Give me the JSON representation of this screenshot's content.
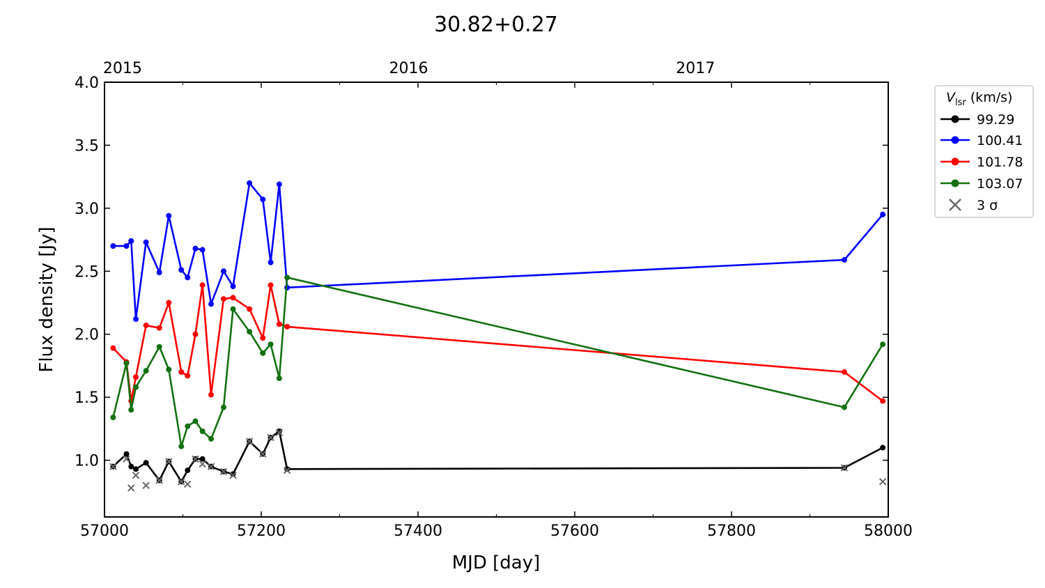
{
  "chart_data": {
    "type": "line",
    "title": "30.82+0.27",
    "xlabel": "MJD [day]",
    "ylabel": "Flux density [Jy]",
    "xlim": [
      57000,
      58000
    ],
    "ylim": [
      0.55,
      4.0
    ],
    "xticks": [
      57000,
      57200,
      57400,
      57600,
      57800,
      58000
    ],
    "yticks": [
      1.0,
      1.5,
      2.0,
      2.5,
      3.0,
      3.5,
      4.0
    ],
    "yticklabels": [
      "1.0",
      "1.5",
      "2.0",
      "2.5",
      "3.0",
      "3.5",
      "4.0"
    ],
    "top_axis": {
      "ticks": [
        {
          "label": "2015",
          "mjd": 57023
        },
        {
          "label": "2016",
          "mjd": 57388
        },
        {
          "label": "2017",
          "mjd": 57754
        }
      ]
    },
    "legend": {
      "title_main": "V",
      "title_sub": "lsr",
      "title_rest": " (km/s)",
      "placement": "outside-right-top",
      "sigma_label": "3 σ"
    },
    "series": [
      {
        "name": "99.29",
        "color": "#000000",
        "x": [
          57011,
          57028,
          57034,
          57040,
          57053,
          57070,
          57082,
          57098,
          57106,
          57116,
          57125,
          57136,
          57152,
          57164,
          57185,
          57202,
          57212,
          57223,
          57233,
          57944,
          57993
        ],
        "y": [
          0.95,
          1.05,
          0.95,
          0.93,
          0.98,
          0.84,
          0.99,
          0.83,
          0.92,
          1.01,
          1.01,
          0.95,
          0.91,
          0.89,
          1.15,
          1.05,
          1.18,
          1.23,
          0.93,
          0.94,
          1.1
        ]
      },
      {
        "name": "100.41",
        "color": "#0000ff",
        "x": [
          57011,
          57028,
          57034,
          57040,
          57053,
          57070,
          57082,
          57098,
          57106,
          57116,
          57125,
          57136,
          57152,
          57164,
          57185,
          57202,
          57212,
          57223,
          57233,
          57944,
          57993
        ],
        "y": [
          2.7,
          2.7,
          2.74,
          2.12,
          2.73,
          2.49,
          2.94,
          2.51,
          2.45,
          2.68,
          2.67,
          2.24,
          2.5,
          2.38,
          3.2,
          3.07,
          2.57,
          3.19,
          2.37,
          2.59,
          2.95
        ]
      },
      {
        "name": "101.78",
        "color": "#ff0000",
        "x": [
          57011,
          57028,
          57034,
          57040,
          57053,
          57070,
          57082,
          57098,
          57106,
          57116,
          57125,
          57136,
          57152,
          57164,
          57185,
          57202,
          57212,
          57223,
          57233,
          57944,
          57993
        ],
        "y": [
          1.89,
          1.78,
          1.47,
          1.66,
          2.07,
          2.05,
          2.25,
          1.7,
          1.67,
          2.0,
          2.39,
          1.52,
          2.28,
          2.29,
          2.2,
          1.97,
          2.39,
          2.08,
          2.06,
          1.7,
          1.47
        ]
      },
      {
        "name": "103.07",
        "color": "#137010",
        "x": [
          57011,
          57028,
          57034,
          57040,
          57053,
          57070,
          57082,
          57098,
          57106,
          57116,
          57125,
          57136,
          57152,
          57164,
          57185,
          57202,
          57212,
          57223,
          57233,
          57944,
          57993
        ],
        "y": [
          1.34,
          1.77,
          1.4,
          1.58,
          1.71,
          1.9,
          1.72,
          1.11,
          1.27,
          1.31,
          1.23,
          1.17,
          1.42,
          2.2,
          2.02,
          1.85,
          1.92,
          1.65,
          2.45,
          1.42,
          1.92
        ]
      }
    ],
    "sigma_points": {
      "name": "3 σ",
      "color": "#666666",
      "x": [
        57011,
        57028,
        57034,
        57040,
        57053,
        57070,
        57082,
        57098,
        57106,
        57116,
        57125,
        57136,
        57152,
        57164,
        57185,
        57202,
        57212,
        57223,
        57233,
        57944,
        57993
      ],
      "y": [
        0.95,
        1.01,
        0.78,
        0.88,
        0.8,
        0.84,
        0.99,
        0.83,
        0.81,
        1.01,
        0.97,
        0.95,
        0.91,
        0.88,
        1.15,
        1.05,
        1.18,
        1.22,
        0.92,
        0.94,
        0.83
      ]
    }
  }
}
